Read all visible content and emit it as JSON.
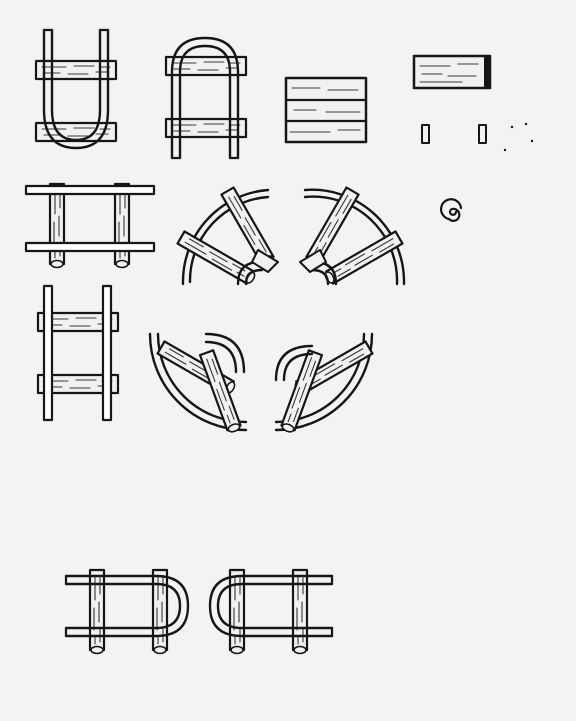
{
  "sheet": {
    "paper_color": "#f3f3f2",
    "ink_color": "#161616",
    "wood_color": "#f1f1f0"
  }
}
